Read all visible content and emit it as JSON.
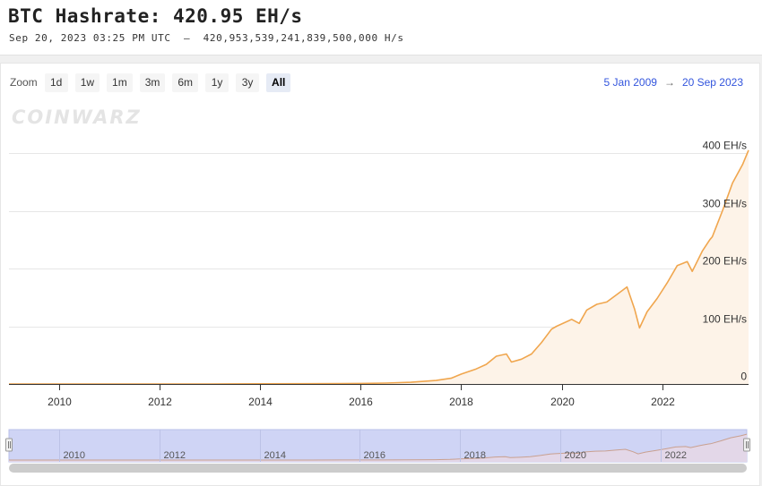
{
  "header": {
    "title": "BTC Hashrate: 420.95 EH/s",
    "subtitle": "Sep 20, 2023 03:25 PM UTC  ‒  420,953,539,241,839,500,000 H/s"
  },
  "toolbar": {
    "zoom_label": "Zoom",
    "buttons": [
      "1d",
      "1w",
      "1m",
      "3m",
      "6m",
      "1y",
      "3y",
      "All"
    ],
    "active": "All",
    "range_from": "5 Jan 2009",
    "range_arrow": "→",
    "range_to": "20 Sep 2023"
  },
  "watermark": "COINWARZ",
  "colors": {
    "line": "#f0a64e",
    "area": "#fdf3e8",
    "navigator": "#cfd4f5",
    "accent": "#3355dd"
  },
  "chart_data": {
    "type": "area",
    "title": "BTC Hashrate: 420.95 EH/s",
    "xlabel": "",
    "ylabel": "",
    "xlim": [
      2009.0,
      2023.72
    ],
    "ylim": [
      0,
      420
    ],
    "y_ticks": [
      0,
      100,
      200,
      300,
      400
    ],
    "y_tick_labels": [
      "0",
      "100 EH/s",
      "200 EH/s",
      "300 EH/s",
      "400 EH/s"
    ],
    "x_ticks": [
      2010,
      2012,
      2014,
      2016,
      2018,
      2020,
      2022
    ],
    "x_tick_labels": [
      "2010",
      "2012",
      "2014",
      "2016",
      "2018",
      "2020",
      "2022"
    ],
    "grid": true,
    "legend": "none",
    "series": [
      {
        "x": [
          2009.0,
          2011.0,
          2013.0,
          2014.0,
          2015.0,
          2016.0,
          2016.5,
          2017.0,
          2017.5,
          2017.8,
          2018.0,
          2018.3,
          2018.5,
          2018.7,
          2018.9,
          2019.0,
          2019.2,
          2019.4,
          2019.6,
          2019.8,
          2019.9,
          2020.2,
          2020.35,
          2020.5,
          2020.7,
          2020.9,
          2021.1,
          2021.3,
          2021.45,
          2021.55,
          2021.7,
          2021.9,
          2022.1,
          2022.3,
          2022.5,
          2022.6,
          2022.8,
          2022.95,
          2023.0,
          2023.2,
          2023.4,
          2023.6,
          2023.72
        ],
        "y": [
          0,
          0,
          0,
          0.3,
          0.4,
          1,
          1.5,
          3,
          6,
          10,
          17,
          26,
          34,
          48,
          52,
          38,
          43,
          52,
          72,
          95,
          100,
          112,
          105,
          128,
          138,
          142,
          155,
          168,
          130,
          97,
          125,
          148,
          175,
          205,
          212,
          195,
          230,
          250,
          255,
          300,
          348,
          380,
          405
        ]
      }
    ]
  },
  "navigator": {
    "x_tick_labels": [
      "2010",
      "2012",
      "2014",
      "2016",
      "2018",
      "2020",
      "2022"
    ]
  }
}
